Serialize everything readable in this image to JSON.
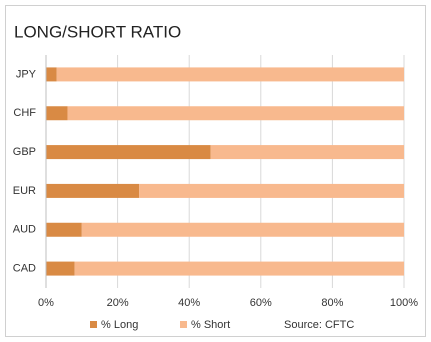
{
  "chart_data": {
    "type": "stacked_barh",
    "title": "LONG/SHORT RATIO",
    "categories": [
      "JPY",
      "CHF",
      "GBP",
      "EUR",
      "AUD",
      "CAD"
    ],
    "series": [
      {
        "name": "% Long",
        "color": "#d98a44",
        "values": [
          3,
          6,
          46,
          26,
          10,
          8
        ]
      },
      {
        "name": "% Short",
        "color": "#f8b98e",
        "values": [
          97,
          94,
          54,
          74,
          90,
          92
        ]
      }
    ],
    "xlim": [
      0,
      100
    ],
    "xticks": [
      {
        "value": 0,
        "label": "0%"
      },
      {
        "value": 20,
        "label": "20%"
      },
      {
        "value": 40,
        "label": "40%"
      },
      {
        "value": 60,
        "label": "60%"
      },
      {
        "value": 80,
        "label": "80%"
      },
      {
        "value": 100,
        "label": "100%"
      }
    ],
    "grid": true,
    "annotation": "Source: CFTC"
  }
}
